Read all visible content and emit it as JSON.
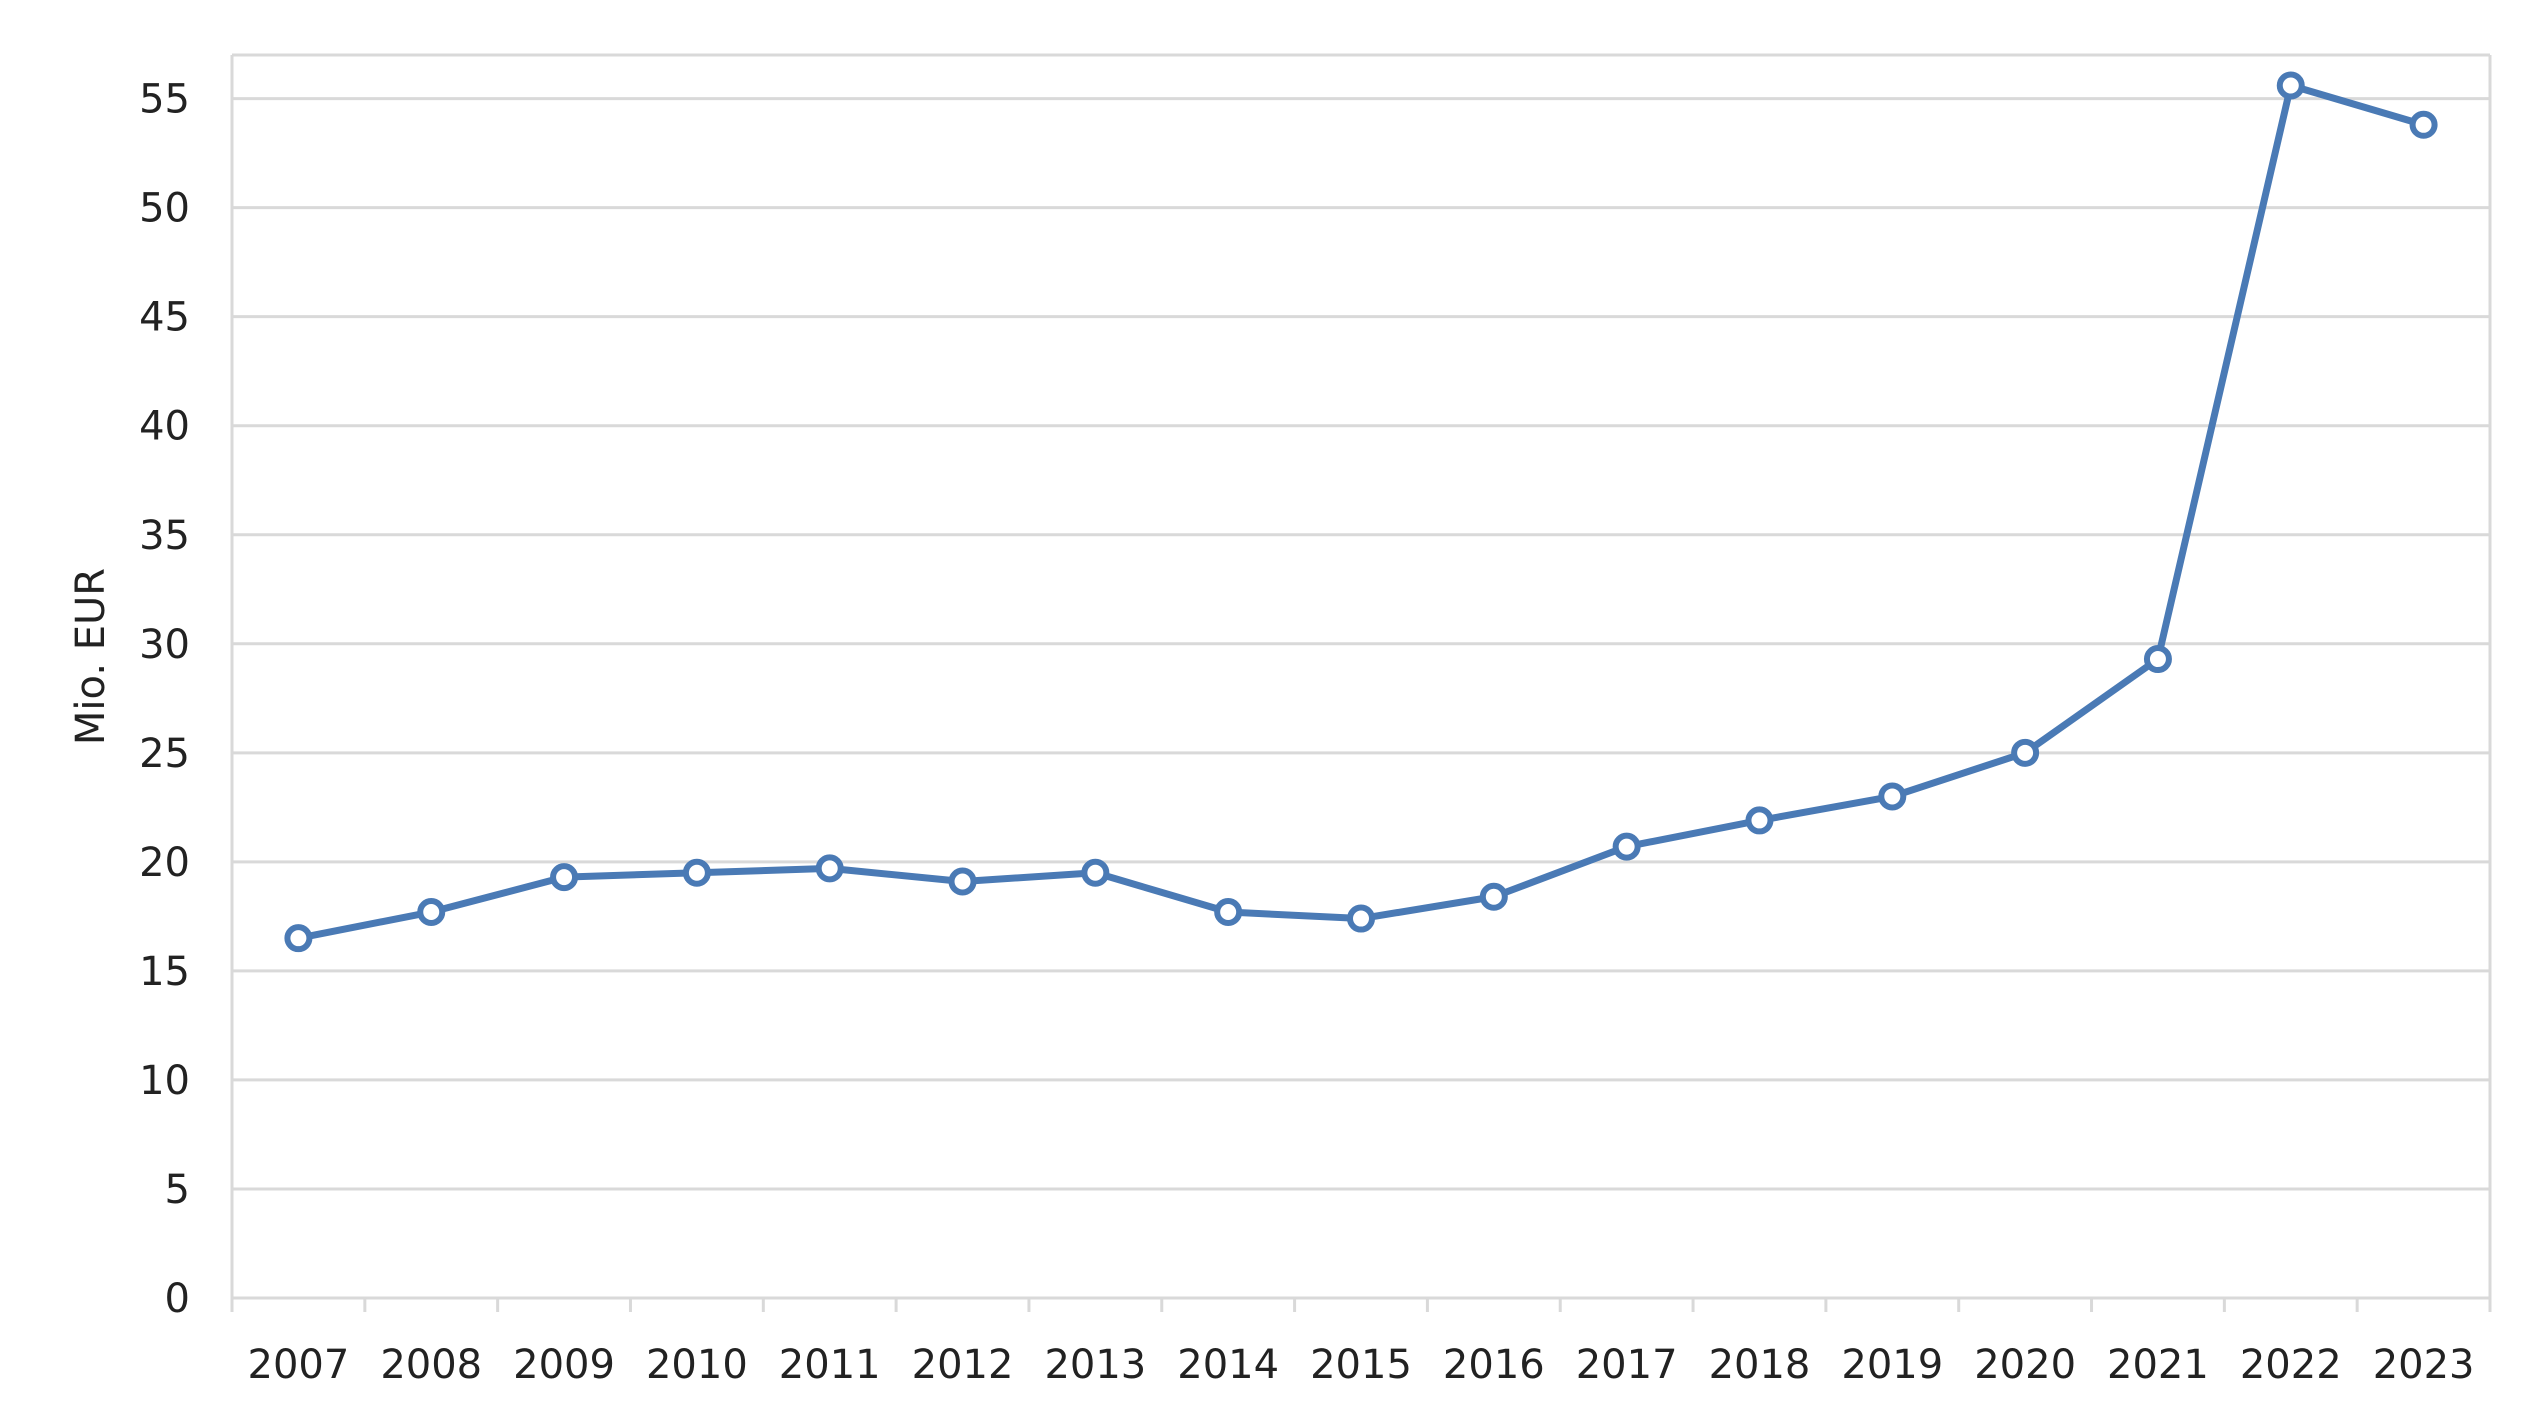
{
  "chart_data": {
    "type": "line",
    "title": "",
    "xlabel": "",
    "ylabel": "Mio. EUR",
    "categories": [
      "2007",
      "2008",
      "2009",
      "2010",
      "2011",
      "2012",
      "2013",
      "2014",
      "2015",
      "2016",
      "2017",
      "2018",
      "2019",
      "2020",
      "2021",
      "2022",
      "2023"
    ],
    "series": [
      {
        "values": [
          16.5,
          17.7,
          19.3,
          19.5,
          19.7,
          19.1,
          19.5,
          17.7,
          17.4,
          18.4,
          20.7,
          21.9,
          23.0,
          25.0,
          29.3,
          55.6,
          53.8
        ],
        "color": "#4a7ab5"
      }
    ],
    "ylim": [
      0,
      57
    ],
    "yticks": [
      0,
      5,
      10,
      15,
      20,
      25,
      30,
      35,
      40,
      45,
      50,
      55
    ],
    "grid": true,
    "legend": "none"
  }
}
